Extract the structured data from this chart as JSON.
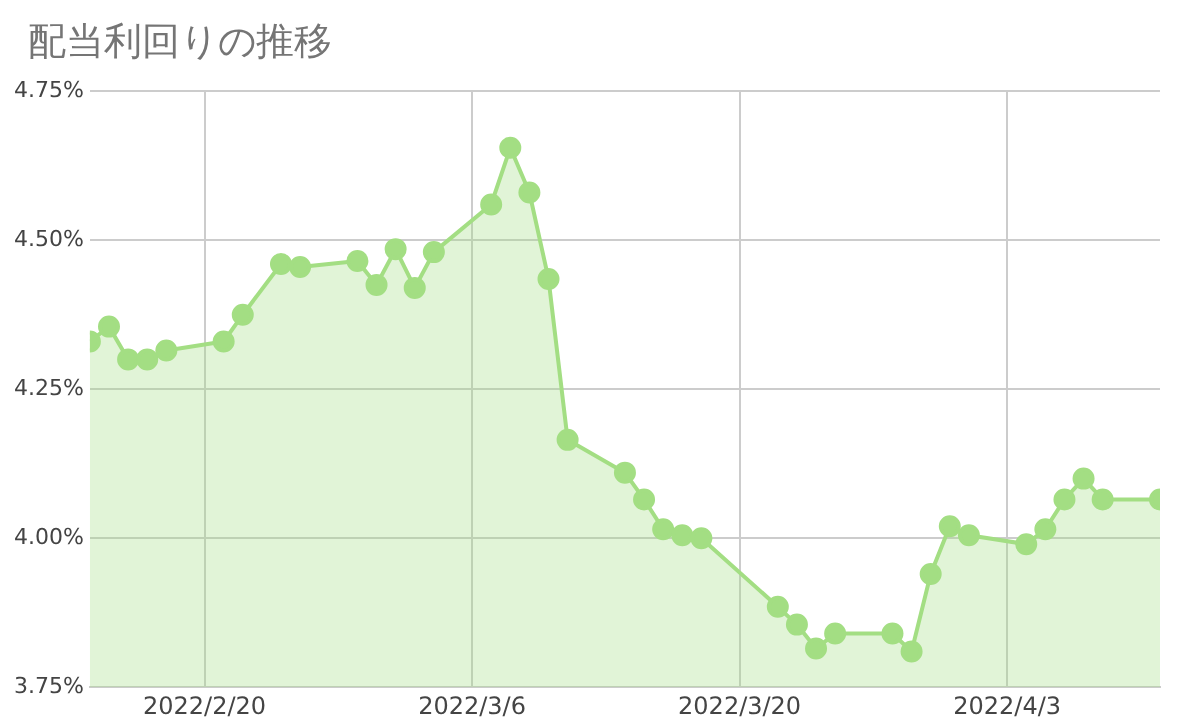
{
  "chart_data": {
    "type": "area",
    "title": "配当利回りの推移",
    "x": [
      "2022-02-14",
      "2022-02-15",
      "2022-02-16",
      "2022-02-17",
      "2022-02-18",
      "2022-02-21",
      "2022-02-22",
      "2022-02-24",
      "2022-02-25",
      "2022-02-28",
      "2022-03-01",
      "2022-03-02",
      "2022-03-03",
      "2022-03-04",
      "2022-03-07",
      "2022-03-08",
      "2022-03-09",
      "2022-03-10",
      "2022-03-11",
      "2022-03-14",
      "2022-03-15",
      "2022-03-16",
      "2022-03-17",
      "2022-03-18",
      "2022-03-22",
      "2022-03-23",
      "2022-03-24",
      "2022-03-25",
      "2022-03-28",
      "2022-03-29",
      "2022-03-30",
      "2022-03-31",
      "2022-04-01",
      "2022-04-04",
      "2022-04-05",
      "2022-04-06",
      "2022-04-07",
      "2022-04-08",
      "2022-04-11"
    ],
    "series": [
      {
        "color": "#a3de83",
        "values": [
          4.33,
          4.355,
          4.3,
          4.3,
          4.315,
          4.33,
          4.375,
          4.46,
          4.455,
          4.465,
          4.425,
          4.485,
          4.42,
          4.48,
          4.56,
          4.655,
          4.58,
          4.435,
          4.165,
          4.11,
          4.065,
          4.015,
          4.005,
          4.0,
          3.885,
          3.855,
          3.815,
          3.84,
          3.84,
          3.81,
          3.94,
          4.02,
          4.005,
          3.99,
          4.015,
          4.065,
          4.1,
          4.065,
          4.065
        ]
      }
    ],
    "xlim": [
      "2022-02-14",
      "2022-04-11"
    ],
    "xticks": [
      {
        "value": "2022-02-20",
        "label": "2022/2/20"
      },
      {
        "value": "2022-03-06",
        "label": "2022/3/6"
      },
      {
        "value": "2022-03-20",
        "label": "2022/3/20"
      },
      {
        "value": "2022-04-03",
        "label": "2022/4/3"
      }
    ],
    "ylim": [
      3.75,
      4.75
    ],
    "yticks": [
      {
        "value": 3.75,
        "label": "3.75%"
      },
      {
        "value": 4.0,
        "label": "4.00%"
      },
      {
        "value": 4.25,
        "label": "4.25%"
      },
      {
        "value": 4.5,
        "label": "4.50%"
      },
      {
        "value": 4.75,
        "label": "4.75%"
      }
    ],
    "grid": true,
    "marker": "circle"
  }
}
